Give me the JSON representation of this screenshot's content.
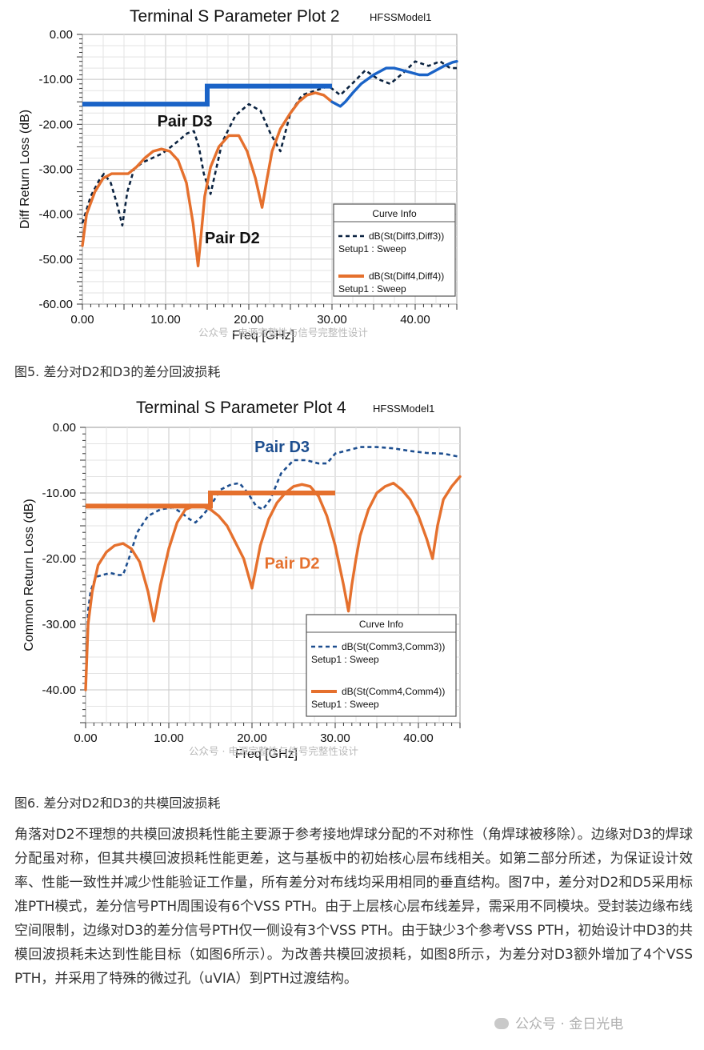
{
  "chart_data": [
    {
      "type": "line",
      "title": "Terminal S Parameter Plot 2",
      "subtitle": "HFSSModel1",
      "xlabel": "Freq [GHz]",
      "ylabel": "Diff Return Loss (dB)",
      "xlim": [
        0,
        45
      ],
      "ylim": [
        -60,
        0
      ],
      "xticks": [
        "0.00",
        "10.00",
        "20.00",
        "30.00",
        "40.00"
      ],
      "yticks": [
        "0.00",
        "-10.00",
        "-20.00",
        "-30.00",
        "-40.00",
        "-50.00",
        "-60.00"
      ],
      "grid": true,
      "legend": {
        "title": "Curve Info",
        "position": "bottom-right",
        "entries": [
          {
            "label": "dB(St(Diff3,Diff3))",
            "sub": "Setup1 : Sweep"
          },
          {
            "label": "dB(St(Diff4,Diff4))",
            "sub": "Setup1 : Sweep"
          }
        ]
      },
      "annotations": [
        {
          "text": "Pair D3",
          "x": 9,
          "y": -20.5,
          "color": "#111111"
        },
        {
          "text": "Pair D2",
          "x": 14.7,
          "y": -46.5,
          "color": "#111111"
        }
      ],
      "series": [
        {
          "name": "dB(St(Diff3,Diff3))",
          "style": "dashed",
          "color": "#0a2240",
          "x": [
            0,
            1,
            2,
            2.6,
            3.4,
            4.2,
            4.8,
            5.4,
            6.2,
            7.2,
            8.4,
            9.6,
            11,
            12.6,
            13.4,
            14,
            14.6,
            15.4,
            16.8,
            18.4,
            20,
            21.4,
            22.6,
            23.8,
            25,
            26.4,
            28,
            29.6,
            31,
            32.4,
            34,
            35.6,
            37,
            38.6,
            40,
            41.6,
            43,
            44.2,
            45
          ],
          "y": [
            -42,
            -36,
            -32.5,
            -31,
            -33,
            -38,
            -42.5,
            -35,
            -30,
            -28.5,
            -27.5,
            -26.5,
            -24.5,
            -22,
            -21.5,
            -25,
            -31,
            -35.5,
            -24,
            -18,
            -15.5,
            -17,
            -22,
            -26,
            -17.5,
            -13.5,
            -12.5,
            -11.5,
            -13.5,
            -11,
            -8,
            -10,
            -11,
            -8.5,
            -6,
            -7,
            -6,
            -7.5,
            -7.5
          ]
        },
        {
          "name": "dB(St(Diff4,Diff4))",
          "style": "solid",
          "color": "#e5702d",
          "x": [
            0,
            0.5,
            1.5,
            2.5,
            3.5,
            4.5,
            5.5,
            6.5,
            7.5,
            8.5,
            9.5,
            10.5,
            11.5,
            12.5,
            13.3,
            13.9,
            14.3,
            14.7,
            15.4,
            16.4,
            17.6,
            18.8,
            19.8,
            20.8,
            21.6,
            22.2,
            22.8,
            23.8,
            25,
            26,
            27,
            28,
            29,
            30
          ],
          "y": [
            -47,
            -40,
            -35,
            -32,
            -31,
            -31,
            -31,
            -29.5,
            -27.5,
            -26,
            -25.5,
            -26,
            -28,
            -33,
            -42,
            -51.5,
            -44,
            -36,
            -29.5,
            -25,
            -22.5,
            -22.5,
            -26,
            -32,
            -38.5,
            -32,
            -26,
            -21,
            -17.5,
            -15,
            -13.5,
            -13,
            -13.5,
            -15
          ]
        },
        {
          "name": "dB(St(Diff3,Diff3)) upper",
          "style": "solid",
          "color": "#1a63c7",
          "x": [
            30,
            31,
            31.6,
            32.5,
            33.5,
            35,
            36.5,
            37.5,
            38.5,
            39.5,
            40.5,
            41.5,
            42.5,
            43.5,
            44.5,
            45
          ],
          "y": [
            -15,
            -16,
            -15,
            -13,
            -11,
            -9,
            -7.5,
            -7.5,
            -8,
            -8.5,
            -9,
            -9,
            -8,
            -7,
            -6.2,
            -6
          ]
        },
        {
          "name": "mask",
          "style": "mask",
          "color": "#1a63c7",
          "x": [
            0,
            15,
            15,
            30
          ],
          "y": [
            -15.5,
            -15.5,
            -11.5,
            -11.5
          ]
        }
      ]
    },
    {
      "type": "line",
      "title": "Terminal S Parameter Plot 4",
      "subtitle": "HFSSModel1",
      "xlabel": "Freq [GHz]",
      "ylabel": "Common Return Loss (dB)",
      "xlim": [
        0,
        45
      ],
      "ylim": [
        -45,
        0
      ],
      "xticks": [
        "0.00",
        "10.00",
        "20.00",
        "30.00",
        "40.00"
      ],
      "yticks": [
        "0.00",
        "-10.00",
        "-20.00",
        "-30.00",
        "-40.00"
      ],
      "grid": true,
      "legend": {
        "title": "Curve Info",
        "position": "bottom-right",
        "entries": [
          {
            "label": "dB(St(Comm3,Comm3))",
            "sub": "Setup1 : Sweep"
          },
          {
            "label": "dB(St(Comm4,Comm4))",
            "sub": "Setup1 : Sweep"
          }
        ]
      },
      "annotations": [
        {
          "text": "Pair D3",
          "x": 20.3,
          "y": -3.8,
          "color": "#1d4e8f"
        },
        {
          "text": "Pair D2",
          "x": 21.5,
          "y": -21.5,
          "color": "#e5702d"
        }
      ],
      "series": [
        {
          "name": "dB(St(Comm3,Comm3))",
          "style": "dashed",
          "color": "#1d4e8f",
          "x": [
            0,
            0.3,
            0.6,
            1.2,
            2,
            3,
            4,
            4.5,
            5.2,
            6.2,
            7.5,
            9,
            10.5,
            11.5,
            12.5,
            13.2,
            14,
            15,
            16.2,
            17.5,
            18.5,
            19.5,
            20.5,
            21.3,
            22.2,
            23.5,
            25,
            26.5,
            28,
            29,
            30,
            31.5,
            33,
            35,
            37,
            39,
            41,
            43,
            45
          ],
          "y": [
            -40,
            -28,
            -25,
            -22.8,
            -22.5,
            -22.2,
            -22.5,
            -22.5,
            -20,
            -16,
            -13.5,
            -12.5,
            -12.2,
            -13,
            -14,
            -14.5,
            -13.5,
            -12,
            -9.5,
            -8.7,
            -8.5,
            -10,
            -12,
            -12.5,
            -11,
            -7,
            -5,
            -5,
            -5.5,
            -5.5,
            -4,
            -3.5,
            -3,
            -3,
            -3.2,
            -3.6,
            -3.9,
            -4,
            -4.5
          ]
        },
        {
          "name": "dB(St(Comm4,Comm4))",
          "style": "solid",
          "color": "#e5702d",
          "x": [
            0,
            0.3,
            0.8,
            1.5,
            2.5,
            3.5,
            4.5,
            5.5,
            6.5,
            7.5,
            8.2,
            9,
            10,
            11,
            12,
            13,
            14,
            15,
            16,
            17,
            18,
            19,
            20,
            21,
            22,
            23,
            24,
            25,
            26,
            27,
            28,
            29,
            30,
            31,
            31.6,
            32,
            32.5,
            33,
            34,
            35,
            36,
            37,
            38,
            39,
            40,
            41,
            41.7,
            42.3,
            43,
            44,
            45
          ],
          "y": [
            -40,
            -30,
            -25,
            -21,
            -19,
            -18,
            -17.7,
            -18.5,
            -20.5,
            -25,
            -29.5,
            -24,
            -18.5,
            -14.5,
            -12.5,
            -12,
            -12,
            -12.5,
            -13.5,
            -15,
            -17.5,
            -20,
            -24.5,
            -18,
            -14,
            -11.5,
            -10,
            -9,
            -8.7,
            -9,
            -10.5,
            -13.5,
            -18,
            -24,
            -28,
            -24,
            -20,
            -16.5,
            -12.5,
            -10,
            -9,
            -8.5,
            -9.5,
            -11,
            -13.5,
            -17,
            -20,
            -15,
            -11,
            -9,
            -7.5
          ]
        },
        {
          "name": "mask",
          "style": "mask",
          "color": "#e5702d",
          "x": [
            0,
            15,
            15,
            30
          ],
          "y": [
            -12,
            -12,
            -10,
            -10
          ]
        }
      ]
    }
  ],
  "captions": {
    "fig5": "图5. 差分对D2和D3的差分回波损耗",
    "fig6": "图6. 差分对D2和D3的共模回波损耗"
  },
  "watermarks": {
    "plot1": "公众号 · 电源完整性与信号完整性设计",
    "plot2": "公众号 · 电源完整性与信号完整性设计",
    "corner": "公众号 · 金日光电"
  },
  "body_text": "角落对D2不理想的共模回波损耗性能主要源于参考接地焊球分配的不对称性（角焊球被移除）。边缘对D3的焊球分配虽对称，但其共模回波损耗性能更差，这与基板中的初始核心层布线相关。如第二部分所述，为保证设计效率、性能一致性并减少性能验证工作量，所有差分对布线均采用相同的垂直结构。图7中，差分对D2和D5采用标准PTH模式，差分信号PTH周围设有6个VSS PTH。由于上层核心层布线差异，需采用不同模块。受封装边缘布线空间限制，边缘对D3的差分信号PTH仅一侧设有3个VSS PTH。由于缺少3个参考VSS PTH，初始设计中D3的共模回波损耗未达到性能目标（如图6所示）。为改善共模回波损耗，如图8所示，为差分对D3额外增加了4个VSS PTH，并采用了特殊的微过孔（uVIA）到PTH过渡结构。"
}
